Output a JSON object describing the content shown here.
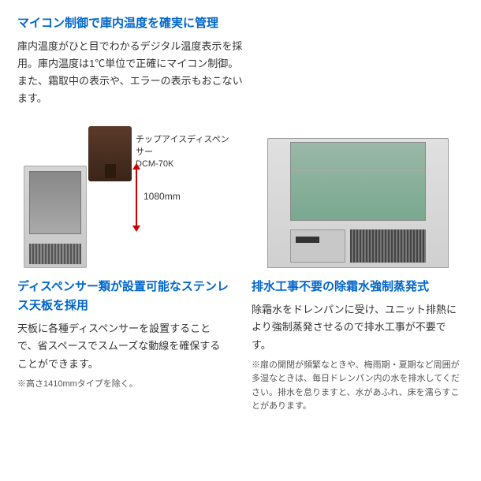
{
  "top": {
    "title": "マイコン制御で庫内温度を確実に管理",
    "body": "庫内温度がひと目でわかるデジタル温度表示を採用。庫内温度は1℃単位で正確にマイコン制御。また、霜取中の表示や、エラーの表示もおこないます。"
  },
  "left": {
    "caption1": "チップアイスディスペンサー",
    "caption2": "DCM-70K",
    "arrow_label": "1080mm",
    "title": "ディスペンサー類が設置可能なステンレス天板を採用",
    "body": "天板に各種ディスペンサーを設置することで、省スペースでスムーズな動線を確保することができます。",
    "note": "※高さ1410mmタイプを除く。"
  },
  "right": {
    "title": "排水工事不要の除霜水強制蒸発式",
    "body": "除霜水をドレンパンに受け、ユニット排熱により強制蒸発させるので排水工事が不要です。",
    "note": "※扉の開閉が頻繁なときや、梅雨期・夏期など周囲が多湿なときは、毎日ドレンパン内の水を排水してください。排水を怠りますと、水があふれ、床を濡らすことがあります。"
  },
  "colors": {
    "title_color": "#0066cc",
    "body_color": "#333333",
    "arrow_color": "#cc0000",
    "note_color": "#555555"
  }
}
